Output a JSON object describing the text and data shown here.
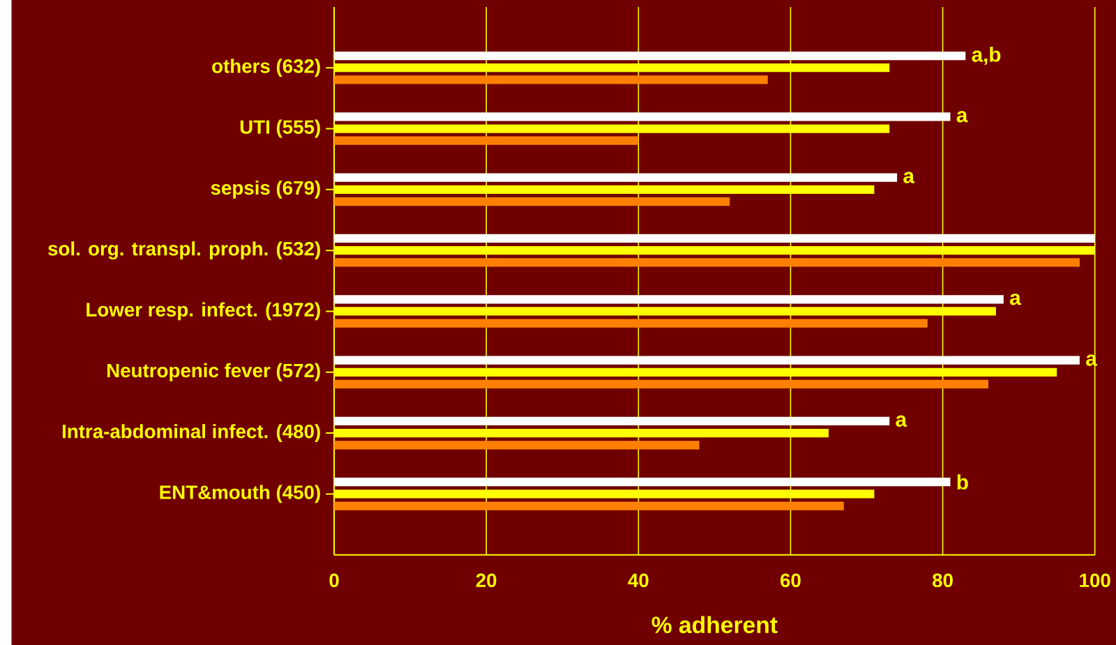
{
  "chart_data": {
    "type": "bar",
    "orientation": "horizontal",
    "categories": [
      "others (632)",
      "UTI (555)",
      "sepsis (679)",
      "sol. org. transpl. proph. (532)",
      "Lower resp. infect. (1972)",
      "Neutropenic fever (572)",
      "Intra-abdominal infect. (480)",
      "ENT&mouth (450)"
    ],
    "series": [
      {
        "color": "#ffffff",
        "values": [
          83,
          81,
          74,
          100,
          88,
          98,
          73,
          81
        ],
        "value_labels": [
          "a,b",
          "a",
          "a",
          null,
          "a",
          "a",
          "a",
          "b"
        ]
      },
      {
        "color": "#ffff00",
        "values": [
          73,
          73,
          71,
          100,
          87,
          95,
          65,
          71
        ]
      },
      {
        "color": "#ff8000",
        "values": [
          57,
          40,
          52,
          98,
          78,
          86,
          48,
          67
        ]
      }
    ],
    "xlim": [
      0,
      100
    ],
    "xticks": [
      0,
      20,
      40,
      60,
      80,
      100
    ],
    "xlabel": "% adherent",
    "grid": "x"
  }
}
